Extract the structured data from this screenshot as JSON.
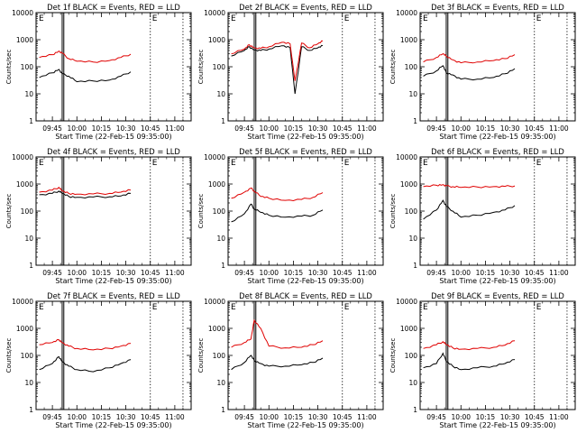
{
  "figure": {
    "xticks": [
      "09:45",
      "10:00",
      "10:15",
      "10:30",
      "10:45",
      "11:00"
    ],
    "yticks": [
      "1",
      "10",
      "100",
      "1000",
      "10000"
    ],
    "ylim": [
      1,
      10000
    ],
    "ylabel": "Counts/sec",
    "xlabel": "Start Time (22-Feb-15 09:35:00)",
    "marker": "E",
    "line_colors": {
      "events": "#000000",
      "lld": "#e00000"
    }
  },
  "chart_data": [
    {
      "type": "line",
      "title": "Det 1f BLACK = Events, RED = LLD",
      "x_range": [
        "09:35",
        "11:10"
      ],
      "vlines": [
        "09:51",
        "09:52"
      ],
      "dotted_lines": [
        "10:45",
        "11:05"
      ],
      "series": [
        {
          "name": "Events",
          "x": [
            "09:37",
            "09:45",
            "09:49",
            "09:51",
            "09:55",
            "10:00",
            "10:10",
            "10:20",
            "10:27",
            "10:33"
          ],
          "y": [
            40,
            60,
            80,
            55,
            45,
            28,
            30,
            32,
            45,
            65
          ]
        },
        {
          "name": "LLD",
          "x": [
            "09:37",
            "09:45",
            "09:49",
            "09:51",
            "09:55",
            "10:00",
            "10:10",
            "10:20",
            "10:27",
            "10:33"
          ],
          "y": [
            220,
            280,
            380,
            320,
            200,
            160,
            150,
            170,
            220,
            290
          ]
        }
      ]
    },
    {
      "type": "line",
      "title": "Det 2f BLACK = Events, RED = LLD",
      "x_range": [
        "09:35",
        "11:10"
      ],
      "vlines": [
        "09:51",
        "09:52"
      ],
      "dotted_lines": [
        "10:45",
        "11:05"
      ],
      "series": [
        {
          "name": "Events",
          "x": [
            "09:37",
            "09:45",
            "09:48",
            "09:51",
            "09:55",
            "10:00",
            "10:08",
            "10:13",
            "10:16",
            "10:20",
            "10:25",
            "10:30",
            "10:33"
          ],
          "y": [
            250,
            400,
            550,
            420,
            400,
            450,
            600,
            500,
            10,
            550,
            400,
            500,
            600
          ]
        },
        {
          "name": "LLD",
          "x": [
            "09:37",
            "09:45",
            "09:48",
            "09:51",
            "09:55",
            "10:00",
            "10:08",
            "10:13",
            "10:16",
            "10:20",
            "10:25",
            "10:30",
            "10:33"
          ],
          "y": [
            300,
            450,
            650,
            500,
            480,
            550,
            800,
            700,
            30,
            750,
            500,
            700,
            900
          ]
        }
      ]
    },
    {
      "type": "line",
      "title": "Det 3f BLACK = Events, RED = LLD",
      "x_range": [
        "09:35",
        "11:10"
      ],
      "vlines": [
        "09:51",
        "09:52"
      ],
      "dotted_lines": [
        "10:45",
        "11:05"
      ],
      "series": [
        {
          "name": "Events",
          "x": [
            "09:37",
            "09:45",
            "09:49",
            "09:51",
            "09:55",
            "10:00",
            "10:10",
            "10:20",
            "10:27",
            "10:33"
          ],
          "y": [
            45,
            70,
            110,
            60,
            50,
            35,
            35,
            40,
            55,
            85
          ]
        },
        {
          "name": "LLD",
          "x": [
            "09:37",
            "09:45",
            "09:49",
            "09:51",
            "09:55",
            "10:00",
            "10:10",
            "10:20",
            "10:27",
            "10:33"
          ],
          "y": [
            150,
            220,
            300,
            250,
            180,
            140,
            150,
            170,
            200,
            280
          ]
        }
      ]
    },
    {
      "type": "line",
      "title": "Det 4f BLACK = Events, RED = LLD",
      "x_range": [
        "09:35",
        "11:10"
      ],
      "vlines": [
        "09:51",
        "09:52"
      ],
      "dotted_lines": [
        "10:45",
        "11:05"
      ],
      "series": [
        {
          "name": "Events",
          "x": [
            "09:37",
            "09:45",
            "09:49",
            "09:51",
            "09:55",
            "10:00",
            "10:10",
            "10:20",
            "10:27",
            "10:33"
          ],
          "y": [
            400,
            450,
            550,
            450,
            350,
            320,
            330,
            340,
            360,
            450
          ]
        },
        {
          "name": "LLD",
          "x": [
            "09:37",
            "09:45",
            "09:49",
            "09:51",
            "09:55",
            "10:00",
            "10:10",
            "10:20",
            "10:27",
            "10:33"
          ],
          "y": [
            500,
            600,
            750,
            550,
            450,
            420,
            430,
            450,
            500,
            600
          ]
        }
      ]
    },
    {
      "type": "line",
      "title": "Det 5f BLACK = Events, RED = LLD",
      "x_range": [
        "09:35",
        "11:10"
      ],
      "vlines": [
        "09:51",
        "09:52"
      ],
      "dotted_lines": [
        "10:45",
        "11:05"
      ],
      "series": [
        {
          "name": "Events",
          "x": [
            "09:37",
            "09:45",
            "09:49",
            "09:51",
            "09:55",
            "10:00",
            "10:10",
            "10:20",
            "10:27",
            "10:33"
          ],
          "y": [
            40,
            80,
            180,
            120,
            90,
            70,
            60,
            65,
            70,
            110
          ]
        },
        {
          "name": "LLD",
          "x": [
            "09:37",
            "09:45",
            "09:49",
            "09:51",
            "09:55",
            "10:00",
            "10:10",
            "10:20",
            "10:27",
            "10:33"
          ],
          "y": [
            300,
            500,
            700,
            550,
            350,
            300,
            250,
            270,
            320,
            480
          ]
        }
      ]
    },
    {
      "type": "line",
      "title": "Det 6f BLACK = Events, RED = LLD",
      "x_range": [
        "09:35",
        "11:10"
      ],
      "vlines": [
        "09:51",
        "09:52"
      ],
      "dotted_lines": [
        "10:45",
        "11:05"
      ],
      "series": [
        {
          "name": "Events",
          "x": [
            "09:37",
            "09:45",
            "09:49",
            "09:51",
            "09:55",
            "10:00",
            "10:10",
            "10:20",
            "10:27",
            "10:33"
          ],
          "y": [
            50,
            110,
            250,
            150,
            100,
            60,
            70,
            90,
            110,
            160
          ]
        },
        {
          "name": "LLD",
          "x": [
            "09:37",
            "09:45",
            "09:49",
            "09:51",
            "09:55",
            "10:00",
            "10:10",
            "10:20",
            "10:27",
            "10:33"
          ],
          "y": [
            800,
            900,
            950,
            850,
            800,
            750,
            780,
            800,
            820,
            850
          ]
        }
      ]
    },
    {
      "type": "line",
      "title": "Det 7f BLACK = Events, RED = LLD",
      "x_range": [
        "09:35",
        "11:10"
      ],
      "vlines": [
        "09:51",
        "09:52"
      ],
      "dotted_lines": [
        "10:45",
        "11:05"
      ],
      "series": [
        {
          "name": "Events",
          "x": [
            "09:37",
            "09:45",
            "09:49",
            "09:51",
            "09:55",
            "10:00",
            "10:10",
            "10:20",
            "10:27",
            "10:33"
          ],
          "y": [
            30,
            50,
            90,
            60,
            40,
            30,
            25,
            35,
            50,
            70
          ]
        },
        {
          "name": "LLD",
          "x": [
            "09:37",
            "09:45",
            "09:49",
            "09:51",
            "09:55",
            "10:00",
            "10:10",
            "10:20",
            "10:27",
            "10:33"
          ],
          "y": [
            250,
            300,
            380,
            300,
            220,
            180,
            160,
            180,
            220,
            280
          ]
        }
      ]
    },
    {
      "type": "line",
      "title": "Det 8f BLACK = Events, RED = LLD",
      "x_range": [
        "09:35",
        "11:10"
      ],
      "vlines": [
        "09:51",
        "09:52"
      ],
      "dotted_lines": [
        "10:45",
        "11:05"
      ],
      "series": [
        {
          "name": "Events",
          "x": [
            "09:37",
            "09:45",
            "09:49",
            "09:51",
            "09:55",
            "10:00",
            "10:10",
            "10:20",
            "10:27",
            "10:33"
          ],
          "y": [
            30,
            55,
            100,
            65,
            50,
            40,
            40,
            45,
            55,
            80
          ]
        },
        {
          "name": "LLD",
          "x": [
            "09:37",
            "09:45",
            "09:49",
            "09:51",
            "09:55",
            "10:00",
            "10:10",
            "10:20",
            "10:27",
            "10:33"
          ],
          "y": [
            200,
            300,
            400,
            2000,
            1000,
            220,
            190,
            200,
            250,
            350
          ]
        }
      ]
    },
    {
      "type": "line",
      "title": "Det 9f BLACK = Events, RED = LLD",
      "x_range": [
        "09:35",
        "11:10"
      ],
      "vlines": [
        "09:51",
        "09:52"
      ],
      "dotted_lines": [
        "10:45",
        "11:05"
      ],
      "series": [
        {
          "name": "Events",
          "x": [
            "09:37",
            "09:45",
            "09:49",
            "09:51",
            "09:55",
            "10:00",
            "10:10",
            "10:20",
            "10:27",
            "10:33"
          ],
          "y": [
            35,
            50,
            120,
            60,
            40,
            30,
            35,
            40,
            50,
            70
          ]
        },
        {
          "name": "LLD",
          "x": [
            "09:37",
            "09:45",
            "09:49",
            "09:51",
            "09:55",
            "10:00",
            "10:10",
            "10:20",
            "10:27",
            "10:33"
          ],
          "y": [
            180,
            250,
            320,
            250,
            190,
            170,
            180,
            200,
            240,
            350
          ]
        }
      ]
    }
  ]
}
